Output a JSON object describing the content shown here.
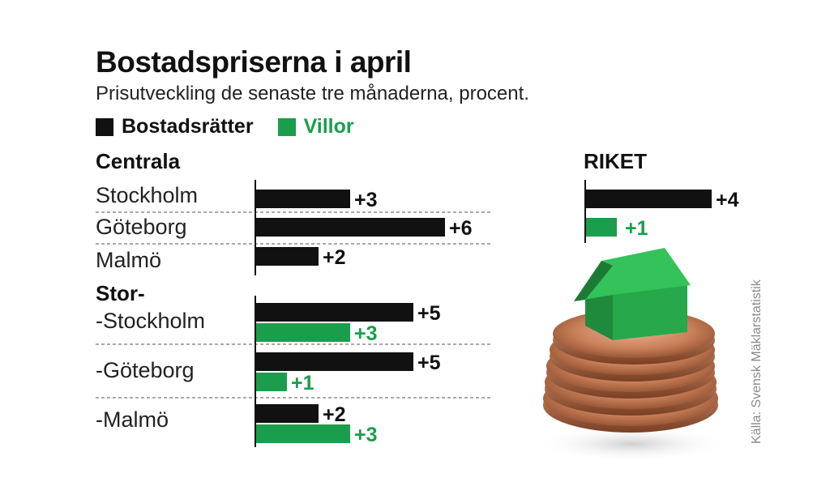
{
  "title": "Bostadspriserna i april",
  "subtitle": "Prisutveckling de senaste tre månaderna, procent.",
  "source": "Källa: Svensk Mäklarstatistik",
  "colors": {
    "bostadsratter": "#111111",
    "villor": "#1a9e4b"
  },
  "illustration": "house-on-coins",
  "chart_data": {
    "type": "bar",
    "orientation": "horizontal",
    "xlim": [
      0,
      6.3
    ],
    "legend": {
      "placement": "top-left"
    },
    "series": [
      {
        "name": "Bostadsrätter",
        "color": "#111111"
      },
      {
        "name": "Villor",
        "color": "#1a9e4b"
      }
    ],
    "groups": [
      {
        "title": "Centrala",
        "rows": [
          {
            "label": "Stockholm",
            "values": [
              3,
              null
            ],
            "labels": [
              "+3",
              ""
            ]
          },
          {
            "label": "Göteborg",
            "values": [
              6,
              null
            ],
            "labels": [
              "+6",
              ""
            ]
          },
          {
            "label": "Malmö",
            "values": [
              2,
              null
            ],
            "labels": [
              "+2",
              ""
            ]
          }
        ]
      },
      {
        "title": "Stor-",
        "rows": [
          {
            "label": "-Stockholm",
            "values": [
              5,
              3
            ],
            "labels": [
              "+5",
              "+3"
            ]
          },
          {
            "label": "-Göteborg",
            "values": [
              5,
              1
            ],
            "labels": [
              "+5",
              "+1"
            ]
          },
          {
            "label": "-Malmö",
            "values": [
              2,
              3
            ],
            "labels": [
              "+2",
              "+3"
            ]
          }
        ]
      }
    ],
    "riket": {
      "title": "RIKET",
      "values": [
        4,
        1
      ],
      "labels": [
        "+4",
        "+1"
      ]
    }
  }
}
